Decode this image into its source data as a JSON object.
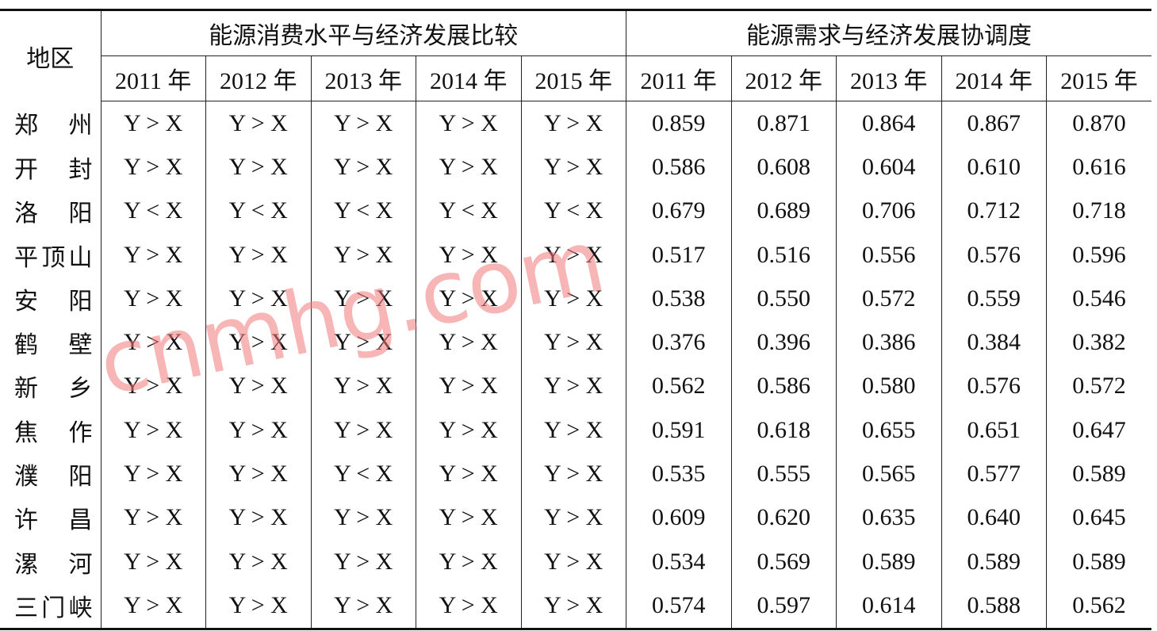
{
  "header": {
    "row1": [
      "地区",
      "能源消费水平与经济发展比较",
      "能源需求与经济发展协调度"
    ],
    "row2": [
      "2011 年",
      "2012 年",
      "2013 年",
      "2014 年",
      "2015 年",
      "2011 年",
      "2012 年",
      "2013 年",
      "2014 年",
      "2015 年"
    ]
  },
  "rows": [
    [
      "郑州",
      "Y > X",
      "Y > X",
      "Y > X",
      "Y > X",
      "Y > X",
      "0.859",
      "0.871",
      "0.864",
      "0.867",
      "0.870"
    ],
    [
      "开封",
      "Y > X",
      "Y > X",
      "Y > X",
      "Y > X",
      "Y > X",
      "0.586",
      "0.608",
      "0.604",
      "0.610",
      "0.616"
    ],
    [
      "洛阳",
      "Y < X",
      "Y < X",
      "Y < X",
      "Y < X",
      "Y < X",
      "0.679",
      "0.689",
      "0.706",
      "0.712",
      "0.718"
    ],
    [
      "平顶山",
      "Y > X",
      "Y > X",
      "Y > X",
      "Y > X",
      "Y > X",
      "0.517",
      "0.516",
      "0.556",
      "0.576",
      "0.596"
    ],
    [
      "安阳",
      "Y > X",
      "Y > X",
      "Y > X",
      "Y > X",
      "Y > X",
      "0.538",
      "0.550",
      "0.572",
      "0.559",
      "0.546"
    ],
    [
      "鹤壁",
      "Y > X",
      "Y > X",
      "Y > X",
      "Y > X",
      "Y > X",
      "0.376",
      "0.396",
      "0.386",
      "0.384",
      "0.382"
    ],
    [
      "新乡",
      "Y > X",
      "Y > X",
      "Y > X",
      "Y > X",
      "Y > X",
      "0.562",
      "0.586",
      "0.580",
      "0.576",
      "0.572"
    ],
    [
      "焦作",
      "Y > X",
      "Y > X",
      "Y > X",
      "Y > X",
      "Y > X",
      "0.591",
      "0.618",
      "0.655",
      "0.651",
      "0.647"
    ],
    [
      "濮阳",
      "Y > X",
      "Y > X",
      "Y < X",
      "Y > X",
      "Y > X",
      "0.535",
      "0.555",
      "0.565",
      "0.577",
      "0.589"
    ],
    [
      "许昌",
      "Y > X",
      "Y > X",
      "Y > X",
      "Y > X",
      "Y > X",
      "0.609",
      "0.620",
      "0.635",
      "0.640",
      "0.645"
    ],
    [
      "漯河",
      "Y > X",
      "Y > X",
      "Y > X",
      "Y > X",
      "Y > X",
      "0.534",
      "0.569",
      "0.589",
      "0.589",
      "0.589"
    ],
    [
      "三门峡",
      "Y > X",
      "Y > X",
      "Y > X",
      "Y > X",
      "Y > X",
      "0.574",
      "0.597",
      "0.614",
      "0.588",
      "0.562"
    ]
  ],
  "watermark": "cnmhg.com"
}
